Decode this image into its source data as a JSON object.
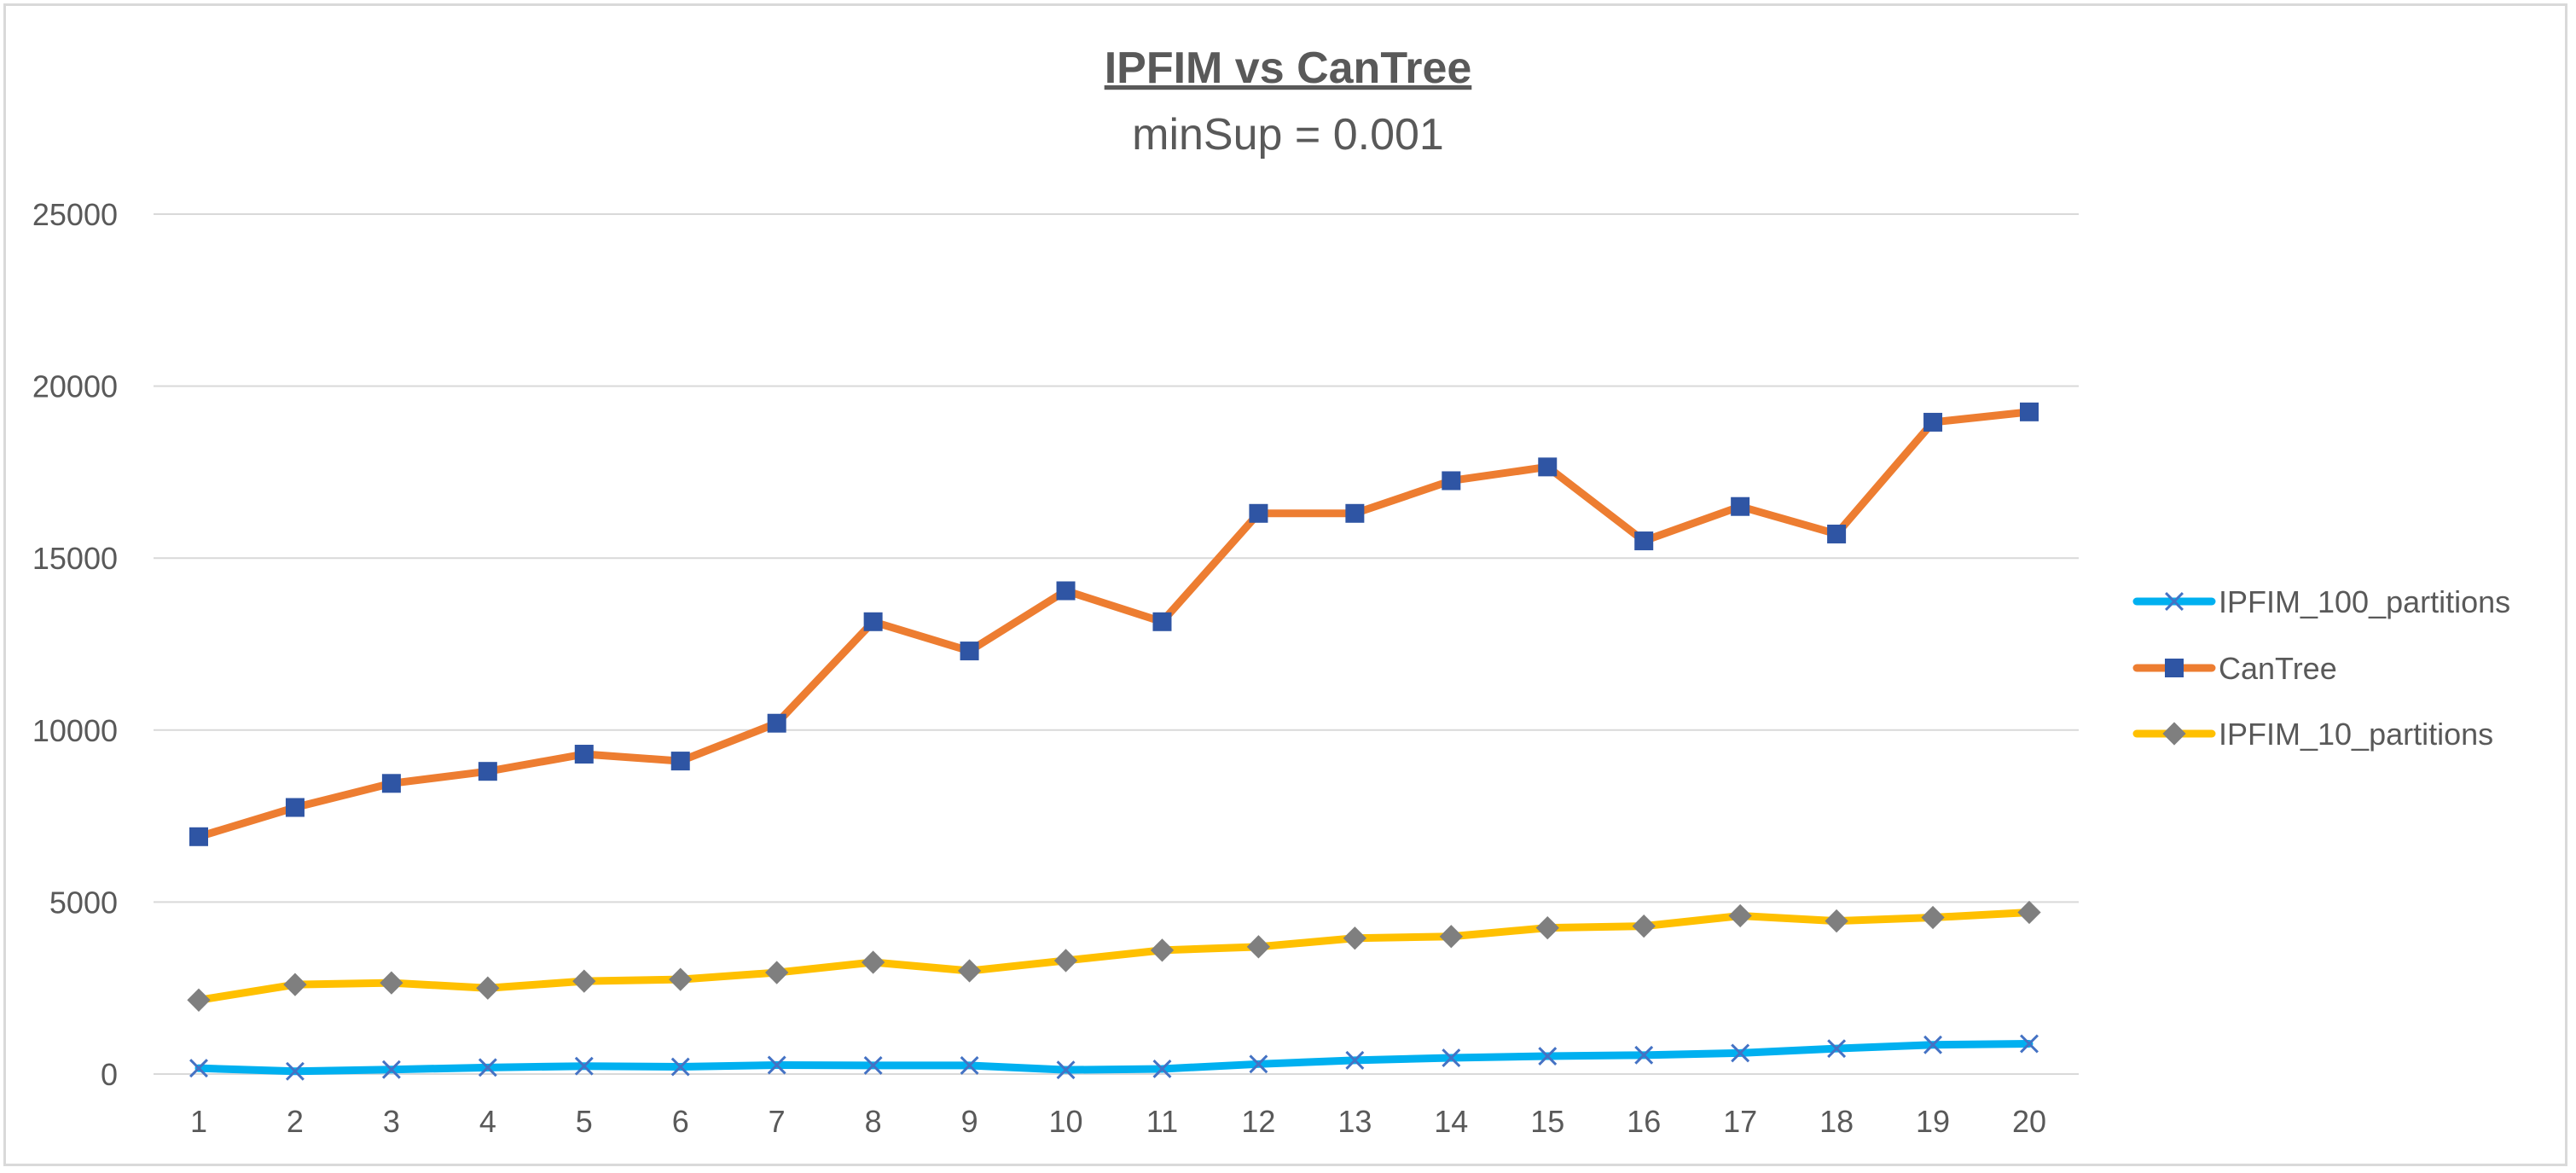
{
  "chart_data": {
    "type": "line",
    "title": "IPFIM vs CanTree",
    "subtitle": "minSup = 0.001",
    "xlabel": "",
    "ylabel": "",
    "x": [
      1,
      2,
      3,
      4,
      5,
      6,
      7,
      8,
      9,
      10,
      11,
      12,
      13,
      14,
      15,
      16,
      17,
      18,
      19,
      20
    ],
    "ylim": [
      0,
      25000
    ],
    "yticks": [
      0,
      5000,
      10000,
      15000,
      20000,
      25000
    ],
    "grid": true,
    "legend_position": "right",
    "series": [
      {
        "name": "IPFIM_100_partitions",
        "color": "#00B0F0",
        "marker": "x",
        "marker_color": "#4472C4",
        "values": [
          170,
          80,
          130,
          190,
          230,
          210,
          260,
          250,
          250,
          120,
          150,
          290,
          400,
          470,
          520,
          550,
          610,
          740,
          850,
          880
        ]
      },
      {
        "name": "CanTree",
        "color": "#ED7D31",
        "marker": "square",
        "marker_color": "#2F55A4",
        "values": [
          6900,
          7750,
          8450,
          8800,
          9300,
          9100,
          10200,
          13150,
          12300,
          14050,
          13150,
          16300,
          16300,
          17250,
          17650,
          15500,
          16500,
          15700,
          18950,
          19250
        ]
      },
      {
        "name": "IPFIM_10_partitions",
        "color": "#FFC000",
        "marker": "diamond",
        "marker_color": "#7F7F7F",
        "values": [
          2150,
          2600,
          2650,
          2500,
          2700,
          2750,
          2950,
          3250,
          3000,
          3300,
          3600,
          3700,
          3950,
          4000,
          4250,
          4300,
          4600,
          4450,
          4550,
          4700
        ]
      }
    ]
  }
}
